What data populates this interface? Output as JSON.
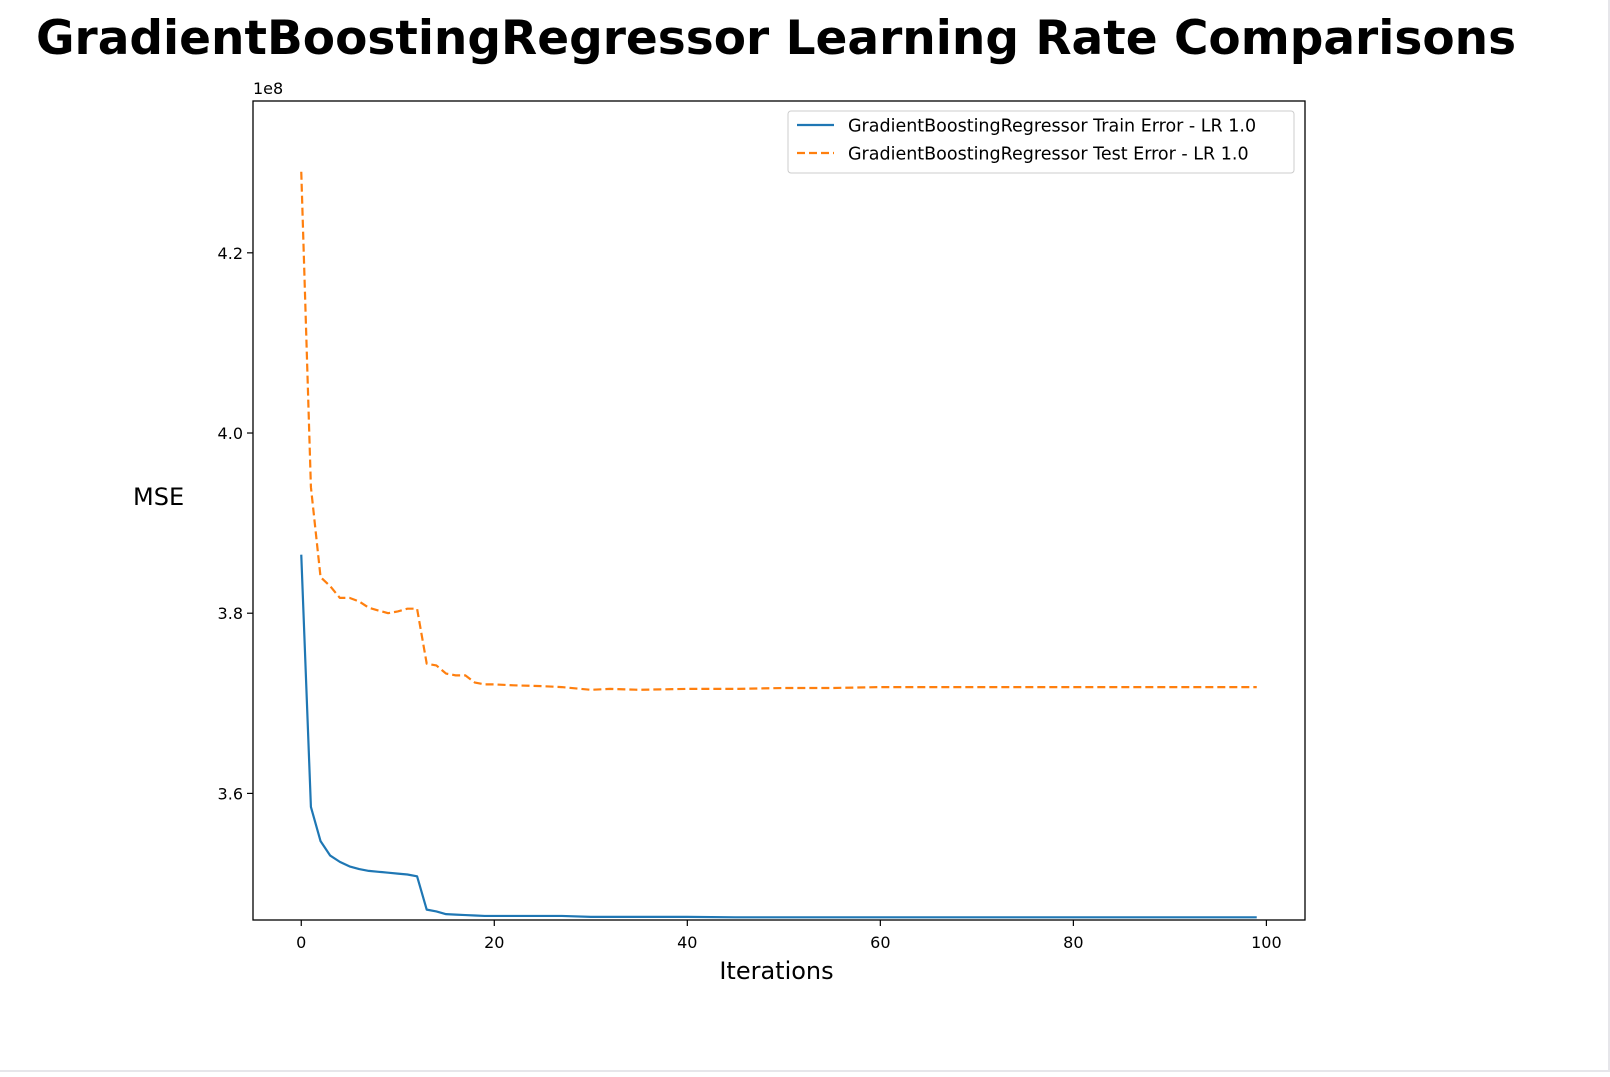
{
  "chart_data": {
    "type": "line",
    "title": "GradientBoostingRegressor Learning Rate Comparisons",
    "xlabel": "Iterations",
    "ylabel": "MSE",
    "y_offset_label": "1e8",
    "xlim": [
      -5,
      104
    ],
    "ylim": [
      3.4595,
      4.3685
    ],
    "x_ticks": [
      0,
      20,
      40,
      60,
      80,
      100
    ],
    "x_tick_labels": [
      "0",
      "20",
      "40",
      "60",
      "80",
      "100"
    ],
    "y_ticks": [
      3.6,
      3.8,
      4.0,
      4.2
    ],
    "y_tick_labels": [
      "3.6",
      "3.8",
      "4.0",
      "4.2"
    ],
    "grid": false,
    "legend_position": "top-right",
    "series": [
      {
        "name": "GradientBoostingRegressor Train Error - LR 1.0",
        "color": "#1f77b4",
        "style": "solid",
        "x": [
          0,
          1,
          2,
          3,
          4,
          5,
          6,
          7,
          8,
          9,
          10,
          11,
          12,
          13,
          14,
          15,
          16,
          17,
          18,
          19,
          20,
          25,
          27,
          30,
          35,
          40,
          45,
          50,
          60,
          70,
          80,
          90,
          99
        ],
        "y": [
          3.865,
          3.585,
          3.547,
          3.531,
          3.524,
          3.519,
          3.516,
          3.514,
          3.513,
          3.512,
          3.511,
          3.51,
          3.508,
          3.471,
          3.469,
          3.466,
          3.4655,
          3.465,
          3.4645,
          3.464,
          3.464,
          3.464,
          3.464,
          3.463,
          3.463,
          3.463,
          3.4625,
          3.4625,
          3.4625,
          3.4625,
          3.4625,
          3.4625,
          3.4625
        ]
      },
      {
        "name": "GradientBoostingRegressor Test Error - LR 1.0",
        "color": "#ff7f0e",
        "style": "dashed",
        "x": [
          0,
          1,
          2,
          3,
          4,
          5,
          6,
          7,
          8,
          9,
          10,
          11,
          12,
          13,
          14,
          15,
          16,
          17,
          18,
          19,
          20,
          22,
          25,
          27,
          30,
          32,
          35,
          40,
          45,
          50,
          55,
          60,
          70,
          80,
          90,
          99
        ],
        "y": [
          4.29,
          3.94,
          3.84,
          3.83,
          3.817,
          3.817,
          3.813,
          3.806,
          3.803,
          3.8,
          3.802,
          3.805,
          3.805,
          3.744,
          3.742,
          3.733,
          3.731,
          3.731,
          3.723,
          3.721,
          3.721,
          3.72,
          3.719,
          3.718,
          3.715,
          3.716,
          3.715,
          3.716,
          3.716,
          3.717,
          3.717,
          3.718,
          3.718,
          3.718,
          3.718,
          3.718
        ]
      }
    ]
  }
}
